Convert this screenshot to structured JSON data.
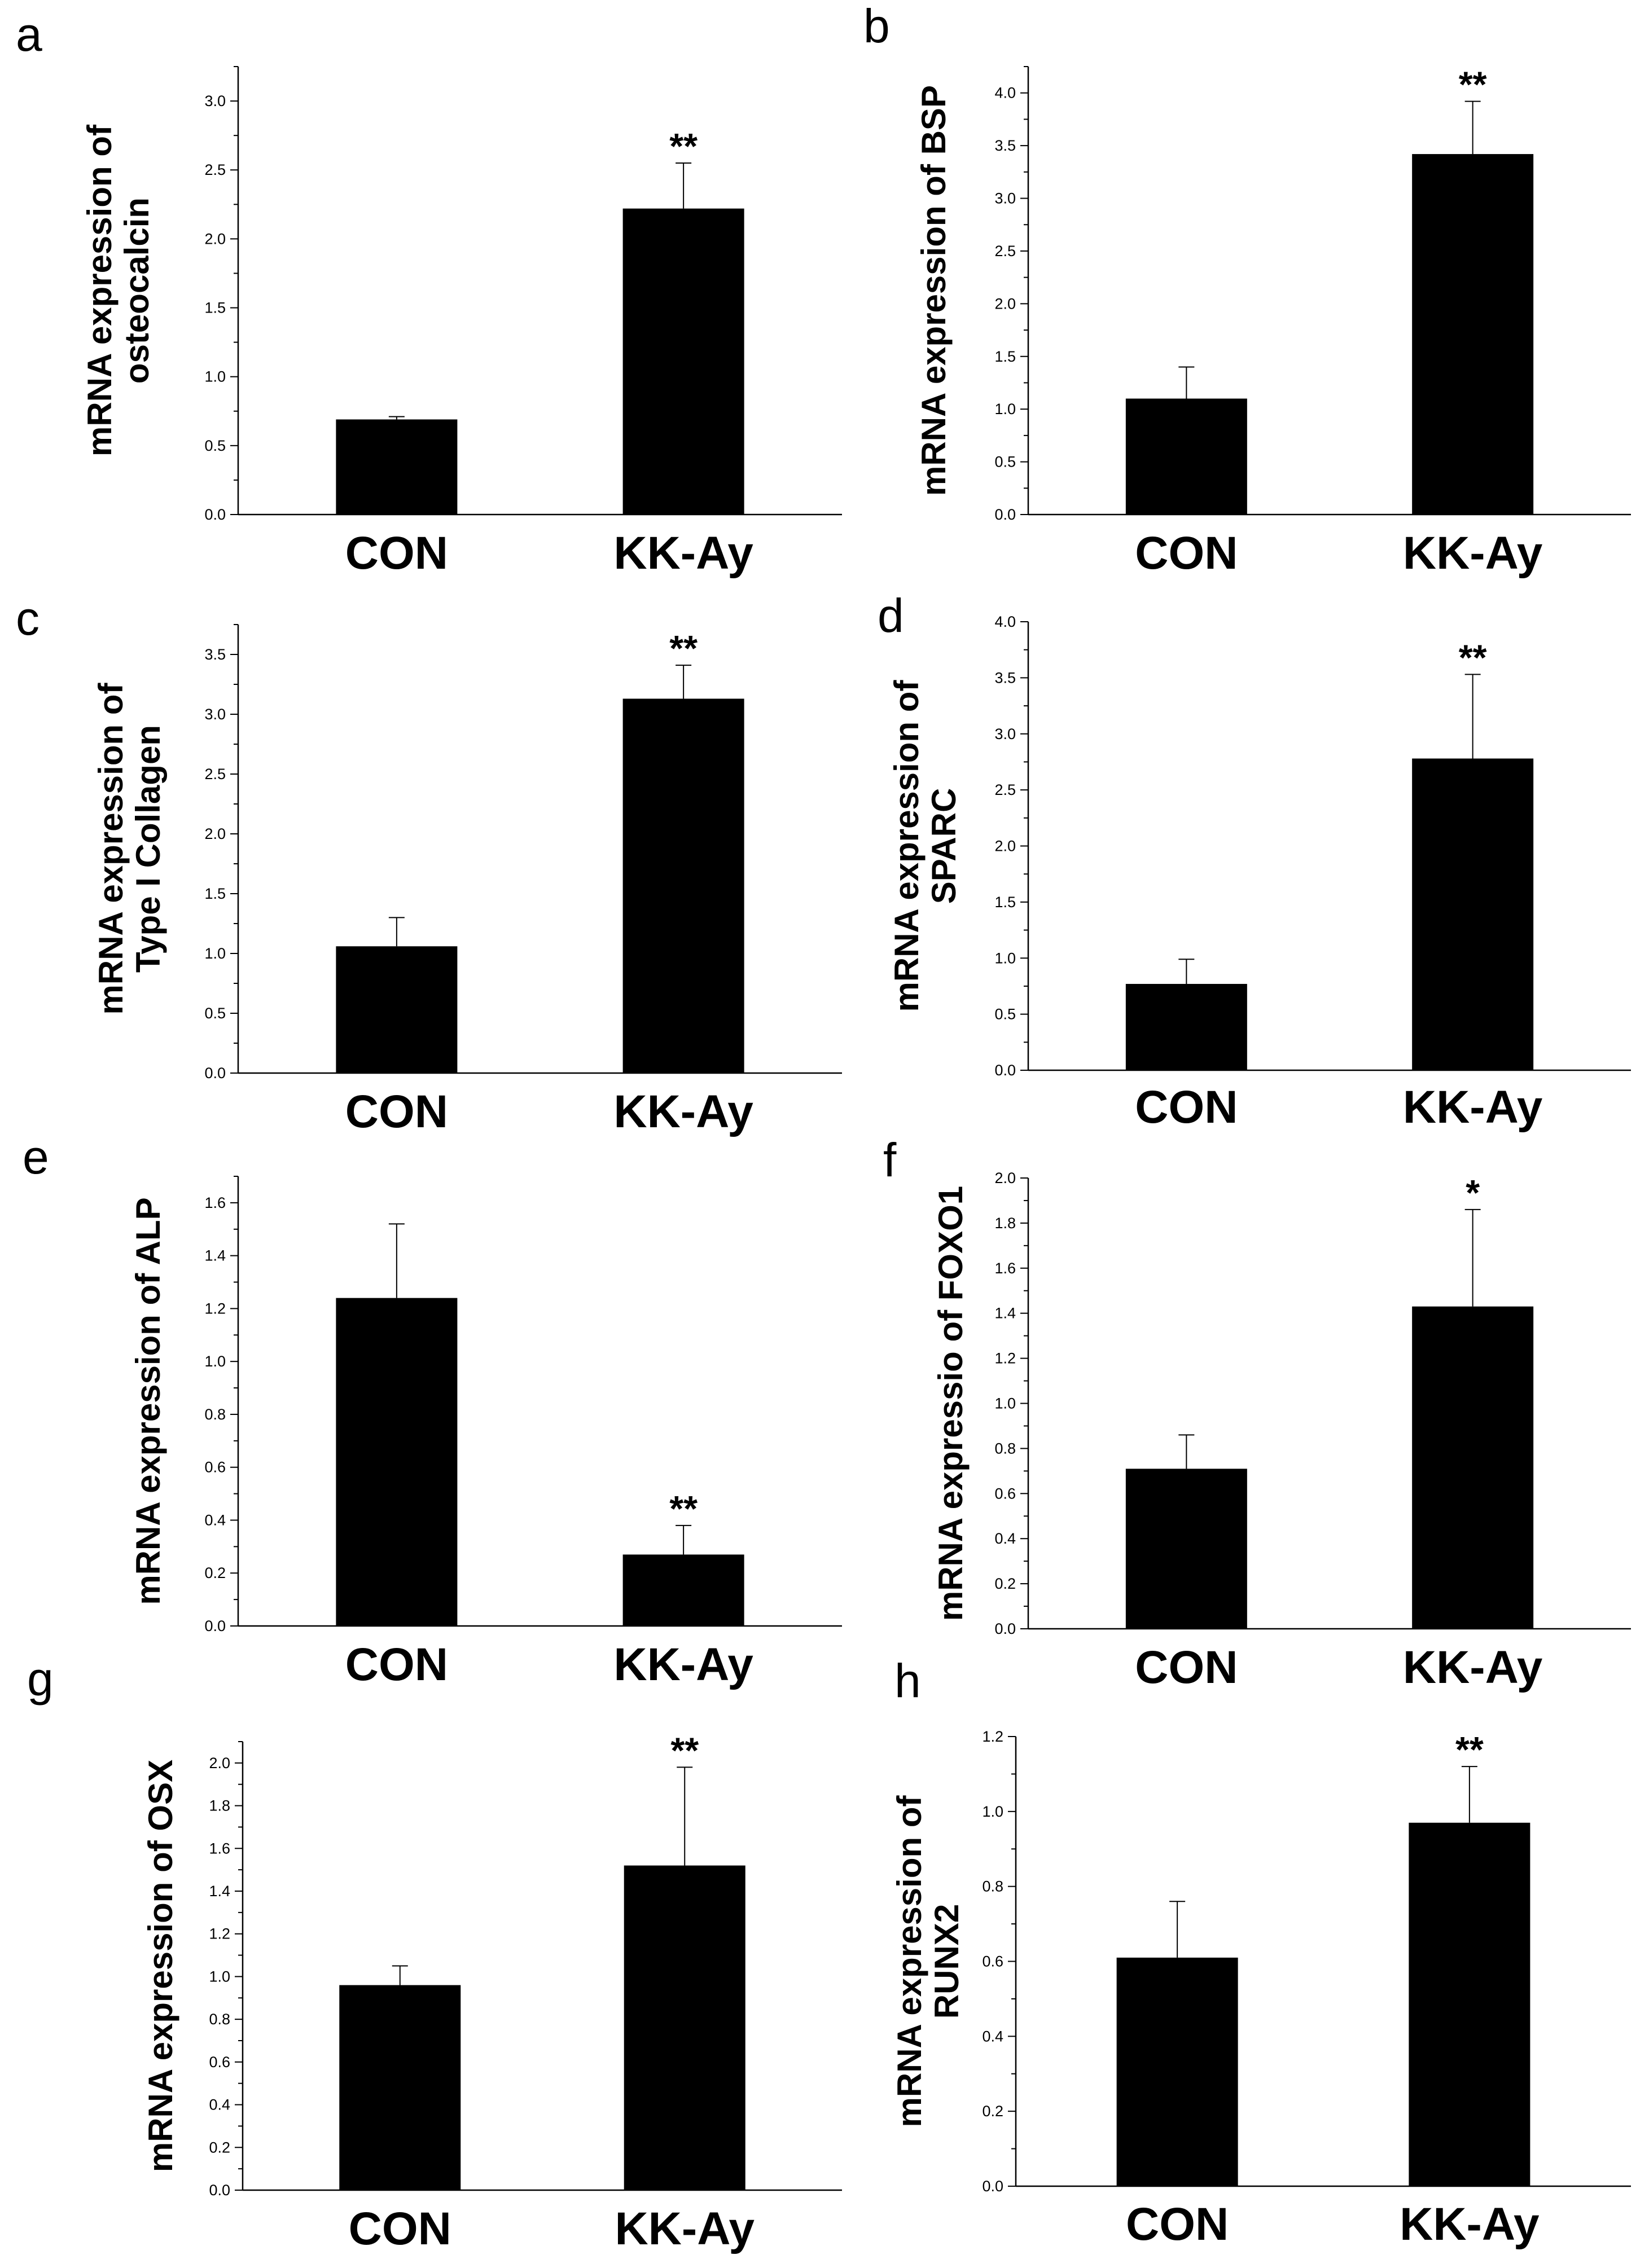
{
  "figure": {
    "colors": {
      "bar": "#000000",
      "axis": "#000000",
      "error_bar": "#000000",
      "background": "#ffffff"
    }
  },
  "chart_data": [
    {
      "panel": "a",
      "type": "bar",
      "categories": [
        "CON",
        "KK-Ay"
      ],
      "values": [
        0.69,
        2.22
      ],
      "errors": [
        0.02,
        0.33
      ],
      "significance": [
        "",
        "**"
      ],
      "ylabel": [
        "mRNA expression of",
        "osteocalcin"
      ],
      "ylim": [
        0,
        3.25
      ],
      "yticks": [
        "0.0",
        "0.5",
        "1.0",
        "1.5",
        "2.0",
        "2.5",
        "3.0"
      ],
      "ytick_step": 0.5,
      "minor_ticks": true
    },
    {
      "panel": "b",
      "type": "bar",
      "categories": [
        "CON",
        "KK-Ay"
      ],
      "values": [
        1.1,
        3.42
      ],
      "errors": [
        0.3,
        0.5
      ],
      "significance": [
        "",
        "**"
      ],
      "ylabel": [
        "mRNA  expression of BSP"
      ],
      "ylim": [
        0,
        4.25
      ],
      "yticks": [
        "0.0",
        "0.5",
        "1.0",
        "1.5",
        "2.0",
        "2.5",
        "3.0",
        "3.5",
        "4.0"
      ],
      "ytick_step": 0.5,
      "minor_ticks": true
    },
    {
      "panel": "c",
      "type": "bar",
      "categories": [
        "CON",
        "KK-Ay"
      ],
      "values": [
        1.06,
        3.13
      ],
      "errors": [
        0.24,
        0.28
      ],
      "significance": [
        "",
        "**"
      ],
      "ylabel": [
        "mRNA expression of",
        "Type I Collagen"
      ],
      "ylim": [
        0,
        3.75
      ],
      "yticks": [
        "0.0",
        "0.5",
        "1.0",
        "1.5",
        "2.0",
        "2.5",
        "3.0",
        "3.5"
      ],
      "ytick_step": 0.5,
      "minor_ticks": true
    },
    {
      "panel": "d",
      "type": "bar",
      "categories": [
        "CON",
        "KK-Ay"
      ],
      "values": [
        0.77,
        2.78
      ],
      "errors": [
        0.22,
        0.75
      ],
      "significance": [
        "",
        "**"
      ],
      "ylabel": [
        "mRNA expression of",
        "SPARC"
      ],
      "ylim": [
        0,
        4.0
      ],
      "yticks": [
        "0.0",
        "0.5",
        "1.0",
        "1.5",
        "2.0",
        "2.5",
        "3.0",
        "3.5",
        "4.0"
      ],
      "ytick_step": 0.5,
      "minor_ticks": true
    },
    {
      "panel": "e",
      "type": "bar",
      "categories": [
        "CON",
        "KK-Ay"
      ],
      "values": [
        1.24,
        0.27
      ],
      "errors": [
        0.28,
        0.11
      ],
      "significance": [
        "",
        "**"
      ],
      "ylabel": [
        "mRNA expression of ALP"
      ],
      "ylim": [
        0,
        1.7
      ],
      "yticks": [
        "0.0",
        "0.2",
        "0.4",
        "0.6",
        "0.8",
        "1.0",
        "1.2",
        "1.4",
        "1.6"
      ],
      "ytick_step": 0.2,
      "minor_ticks": true
    },
    {
      "panel": "f",
      "type": "bar",
      "categories": [
        "CON",
        "KK-Ay"
      ],
      "values": [
        0.71,
        1.43
      ],
      "errors": [
        0.15,
        0.43
      ],
      "significance": [
        "",
        "*"
      ],
      "ylabel": [
        "mRNA expressio of FOXO1"
      ],
      "ylim": [
        0,
        2.0
      ],
      "yticks": [
        "0.0",
        "0.2",
        "0.4",
        "0.6",
        "0.8",
        "1.0",
        "1.2",
        "1.4",
        "1.6",
        "1.8",
        "2.0"
      ],
      "ytick_step": 0.2,
      "minor_ticks": true
    },
    {
      "panel": "g",
      "type": "bar",
      "categories": [
        "CON",
        "KK-Ay"
      ],
      "values": [
        0.96,
        1.52
      ],
      "errors": [
        0.09,
        0.46
      ],
      "significance": [
        "",
        "**"
      ],
      "ylabel": [
        "mRNA expression of OSX"
      ],
      "ylim": [
        0,
        2.1
      ],
      "yticks": [
        "0.0",
        "0.2",
        "0.4",
        "0.6",
        "0.8",
        "1.0",
        "1.2",
        "1.4",
        "1.6",
        "1.8",
        "2.0"
      ],
      "ytick_step": 0.2,
      "minor_ticks": true
    },
    {
      "panel": "h",
      "type": "bar",
      "categories": [
        "CON",
        "KK-Ay"
      ],
      "values": [
        0.61,
        0.97
      ],
      "errors": [
        0.15,
        0.15
      ],
      "significance": [
        "",
        "**"
      ],
      "ylabel": [
        "mRNA expression of",
        "RUNX2"
      ],
      "ylim": [
        0,
        1.2
      ],
      "yticks": [
        "0.0",
        "0.2",
        "0.4",
        "0.6",
        "0.8",
        "1.0",
        "1.2"
      ],
      "ytick_step": 0.2,
      "minor_ticks": true
    }
  ]
}
